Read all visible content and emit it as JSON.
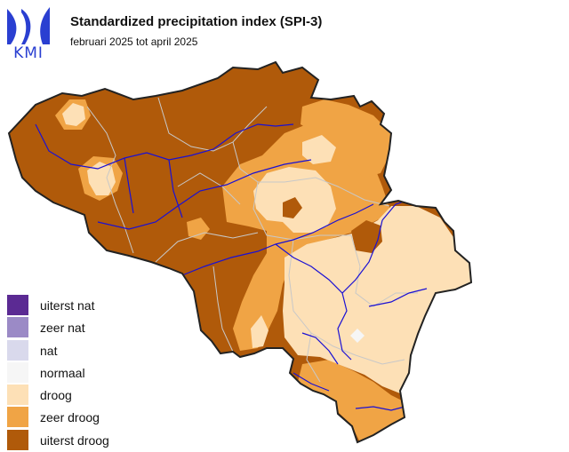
{
  "logo": {
    "text": "KMI",
    "color": "#2a3fd1"
  },
  "title": "Standardized precipitation index (SPI-3)",
  "subtitle": "februari 2025 tot april 2025",
  "legend": [
    {
      "label": "uiterst nat",
      "color": "#5b2a93"
    },
    {
      "label": "zeer nat",
      "color": "#9b8ac6"
    },
    {
      "label": "nat",
      "color": "#d9d9ec"
    },
    {
      "label": "normaal",
      "color": "#f6f6f6"
    },
    {
      "label": "droog",
      "color": "#fde0b6"
    },
    {
      "label": "zeer droog",
      "color": "#f0a445"
    },
    {
      "label": "uiterst droog",
      "color": "#b05a0a"
    }
  ],
  "map_colors": {
    "extreme_dry": "#b05a0a",
    "very_dry": "#f0a445",
    "dry": "#fde0b6",
    "normal": "#f6f6f6",
    "rivers": "#1a10d4",
    "borders": "#c8c8c8",
    "outline": "#222222"
  }
}
